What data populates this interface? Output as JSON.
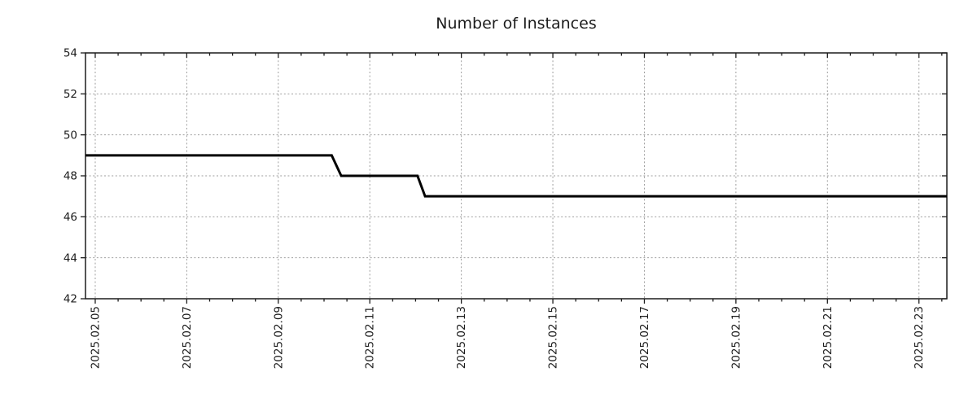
{
  "colors": {
    "line": "#000000",
    "grid": "#9e9e9e",
    "border": "#1c1c1c",
    "text": "#1c1c1c",
    "background": "#ffffff"
  },
  "chart_data": {
    "type": "line",
    "title": "Number of Instances",
    "xlabel": "",
    "ylabel": "",
    "legend": "none",
    "grid": {
      "style": "dotted",
      "color": "#9e9e9e",
      "on": true
    },
    "x_axis": {
      "kind": "time",
      "label_format": "YYYY.MM.DD",
      "range_days": [
        -0.213,
        18.61
      ],
      "range_time": [
        "2025-02-04 ~19:00",
        "2025-02-23 ~14:40"
      ],
      "minor_tick_step_days": 0.5,
      "major_ticks": [
        {
          "d": 0,
          "label": "2025.02.05"
        },
        {
          "d": 2,
          "label": "2025.02.07"
        },
        {
          "d": 4,
          "label": "2025.02.09"
        },
        {
          "d": 6,
          "label": "2025.02.11"
        },
        {
          "d": 8,
          "label": "2025.02.13"
        },
        {
          "d": 10,
          "label": "2025.02.15"
        },
        {
          "d": 12,
          "label": "2025.02.17"
        },
        {
          "d": 14,
          "label": "2025.02.19"
        },
        {
          "d": 16,
          "label": "2025.02.21"
        },
        {
          "d": 18,
          "label": "2025.02.23"
        }
      ]
    },
    "y_axis": {
      "range": [
        42,
        54
      ],
      "ticks": [
        42,
        44,
        46,
        48,
        50,
        52,
        54
      ]
    },
    "series": [
      {
        "name": "instances",
        "color": "#000000",
        "width": 3,
        "points": [
          {
            "t": "2025-02-04 19:00",
            "d": -0.213,
            "v": 49
          },
          {
            "t": "2025-02-10 04:00",
            "d": 5.167,
            "v": 49
          },
          {
            "t": "2025-02-10 09:00",
            "d": 5.375,
            "v": 48
          },
          {
            "t": "2025-02-12 01:00",
            "d": 7.042,
            "v": 48
          },
          {
            "t": "2025-02-12 05:00",
            "d": 7.208,
            "v": 47
          },
          {
            "t": "2025-02-23 14:40",
            "d": 18.61,
            "v": 47
          }
        ],
        "summary": "49 instances until ~2025-02-10 morning, 48 until ~2025-02-12 early morning, then 47 through end"
      }
    ]
  }
}
